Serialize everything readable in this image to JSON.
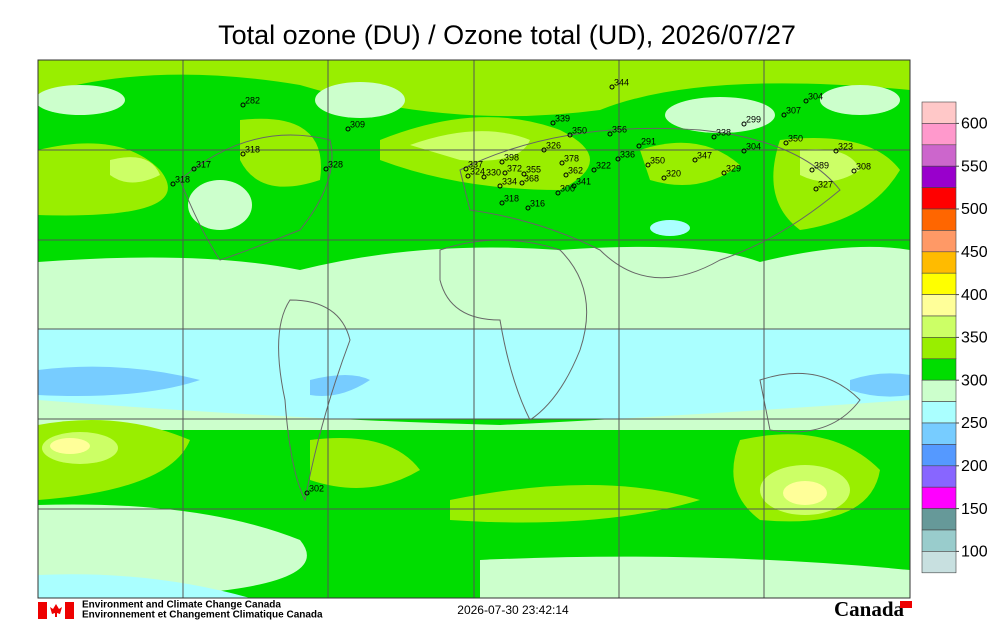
{
  "title": "Total ozone (DU) / Ozone total (UD), 2026/07/27",
  "colorbar": {
    "labels": [
      600,
      550,
      500,
      450,
      400,
      350,
      300,
      250,
      200,
      150,
      100
    ],
    "colors": [
      "#ffc8c8",
      "#ff99cc",
      "#cc66cc",
      "#9900cc",
      "#ff0000",
      "#ff6600",
      "#ff9966",
      "#ffbb00",
      "#ffff00",
      "#ffff99",
      "#ccff66",
      "#99ee00",
      "#00dd00",
      "#ccffcc",
      "#aaffff",
      "#77ccff",
      "#5599ff",
      "#8866ff",
      "#ff00ff",
      "#669999",
      "#99cccc",
      "#c8e0e0"
    ]
  },
  "stations": [
    282,
    309,
    318,
    317,
    318,
    328,
    337,
    324,
    330,
    398,
    372,
    355,
    368,
    334,
    318,
    316,
    326,
    378,
    362,
    341,
    300,
    339,
    350,
    356,
    322,
    336,
    291,
    350,
    320,
    347,
    344,
    338,
    299,
    304,
    329,
    307,
    304,
    350,
    323,
    389,
    308,
    327,
    302
  ],
  "footer": {
    "agency_en": "Environment and Climate Change Canada",
    "agency_fr": "Environnement et Changement Climatique Canada",
    "timestamp": "2026-07-30 23:42:14",
    "wordmark": "Canada"
  }
}
